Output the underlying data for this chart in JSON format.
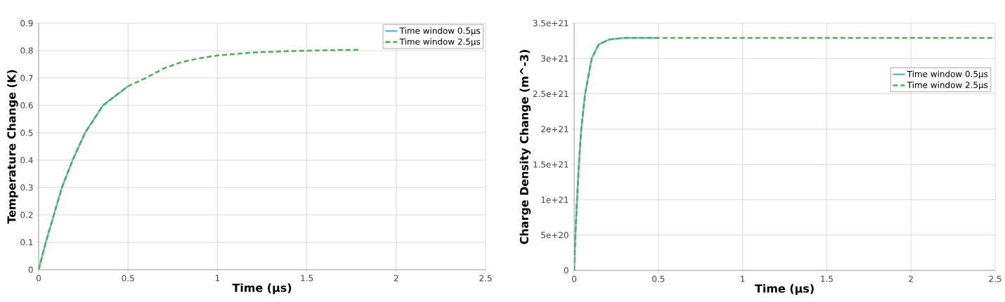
{
  "chart_data": [
    {
      "type": "line",
      "xlabel": "Time (µs)",
      "ylabel": "Temperature Change (K)",
      "xlim": [
        0,
        2.5
      ],
      "ylim": [
        0,
        0.9
      ],
      "xticks": [
        0,
        0.5,
        1,
        1.5,
        2,
        2.5
      ],
      "yticks": [
        0,
        0.1,
        0.2,
        0.3,
        0.4,
        0.5,
        0.6,
        0.7,
        0.8,
        0.9
      ],
      "grid": true,
      "legend": "top right",
      "series": [
        {
          "name": "Time window 0.5µs",
          "color": "#6ab4f0",
          "line_style": "solid",
          "x": [
            0,
            0.04,
            0.085,
            0.13,
            0.19,
            0.26,
            0.36,
            0.5
          ],
          "values": [
            0,
            0.1,
            0.2,
            0.3,
            0.4,
            0.5,
            0.6,
            0.67
          ]
        },
        {
          "name": "Time window 2.5µs",
          "color": "#4caf50",
          "line_style": "dashed",
          "x": [
            0,
            0.04,
            0.085,
            0.13,
            0.19,
            0.26,
            0.36,
            0.5,
            0.6,
            0.7,
            0.8,
            0.9,
            1.0,
            1.2,
            1.4,
            1.6,
            1.8
          ],
          "values": [
            0,
            0.1,
            0.2,
            0.3,
            0.4,
            0.5,
            0.6,
            0.67,
            0.7,
            0.735,
            0.758,
            0.772,
            0.782,
            0.793,
            0.798,
            0.801,
            0.803
          ]
        }
      ]
    },
    {
      "type": "line",
      "xlabel": "Time (µs)",
      "ylabel": "Charge Density Change (m^-3)",
      "xlim": [
        0,
        2.5
      ],
      "ylim": [
        0,
        3.5e+21
      ],
      "xticks": [
        0,
        0.5,
        1,
        1.5,
        2,
        2.5
      ],
      "yticks": [
        0,
        {
          "value": 5e+20,
          "label": "5e+20"
        },
        {
          "value": 1e+21,
          "label": "1e+21"
        },
        {
          "value": 1.5e+21,
          "label": "1.5e+21"
        },
        {
          "value": 2e+21,
          "label": "2e+21"
        },
        {
          "value": 2.5e+21,
          "label": "2.5e+21"
        },
        {
          "value": 3e+21,
          "label": "3e+21"
        },
        {
          "value": 3.5e+21,
          "label": "3.5e+21"
        }
      ],
      "grid": true,
      "legend": "right",
      "series": [
        {
          "name": "Time window 0.5µs",
          "color": "#6ab4f0",
          "line_style": "solid",
          "x": [
            0,
            0.007,
            0.017,
            0.028,
            0.042,
            0.065,
            0.104,
            0.146,
            0.21,
            0.3,
            0.5
          ],
          "values": [
            0,
            5e+20,
            1e+21,
            1.5e+21,
            2e+21,
            2.5e+21,
            3e+21,
            3.2e+21,
            3.27e+21,
            3.29e+21,
            3.29e+21
          ]
        },
        {
          "name": "Time window 2.5µs",
          "color": "#4caf50",
          "line_style": "dashed",
          "x": [
            0,
            0.007,
            0.017,
            0.028,
            0.042,
            0.065,
            0.104,
            0.146,
            0.21,
            0.3,
            0.5,
            1.0,
            1.5,
            2.0,
            2.5
          ],
          "values": [
            0,
            5e+20,
            1e+21,
            1.5e+21,
            2e+21,
            2.5e+21,
            3e+21,
            3.2e+21,
            3.27e+21,
            3.29e+21,
            3.29e+21,
            3.29e+21,
            3.29e+21,
            3.29e+21,
            3.29e+21
          ]
        }
      ]
    }
  ]
}
